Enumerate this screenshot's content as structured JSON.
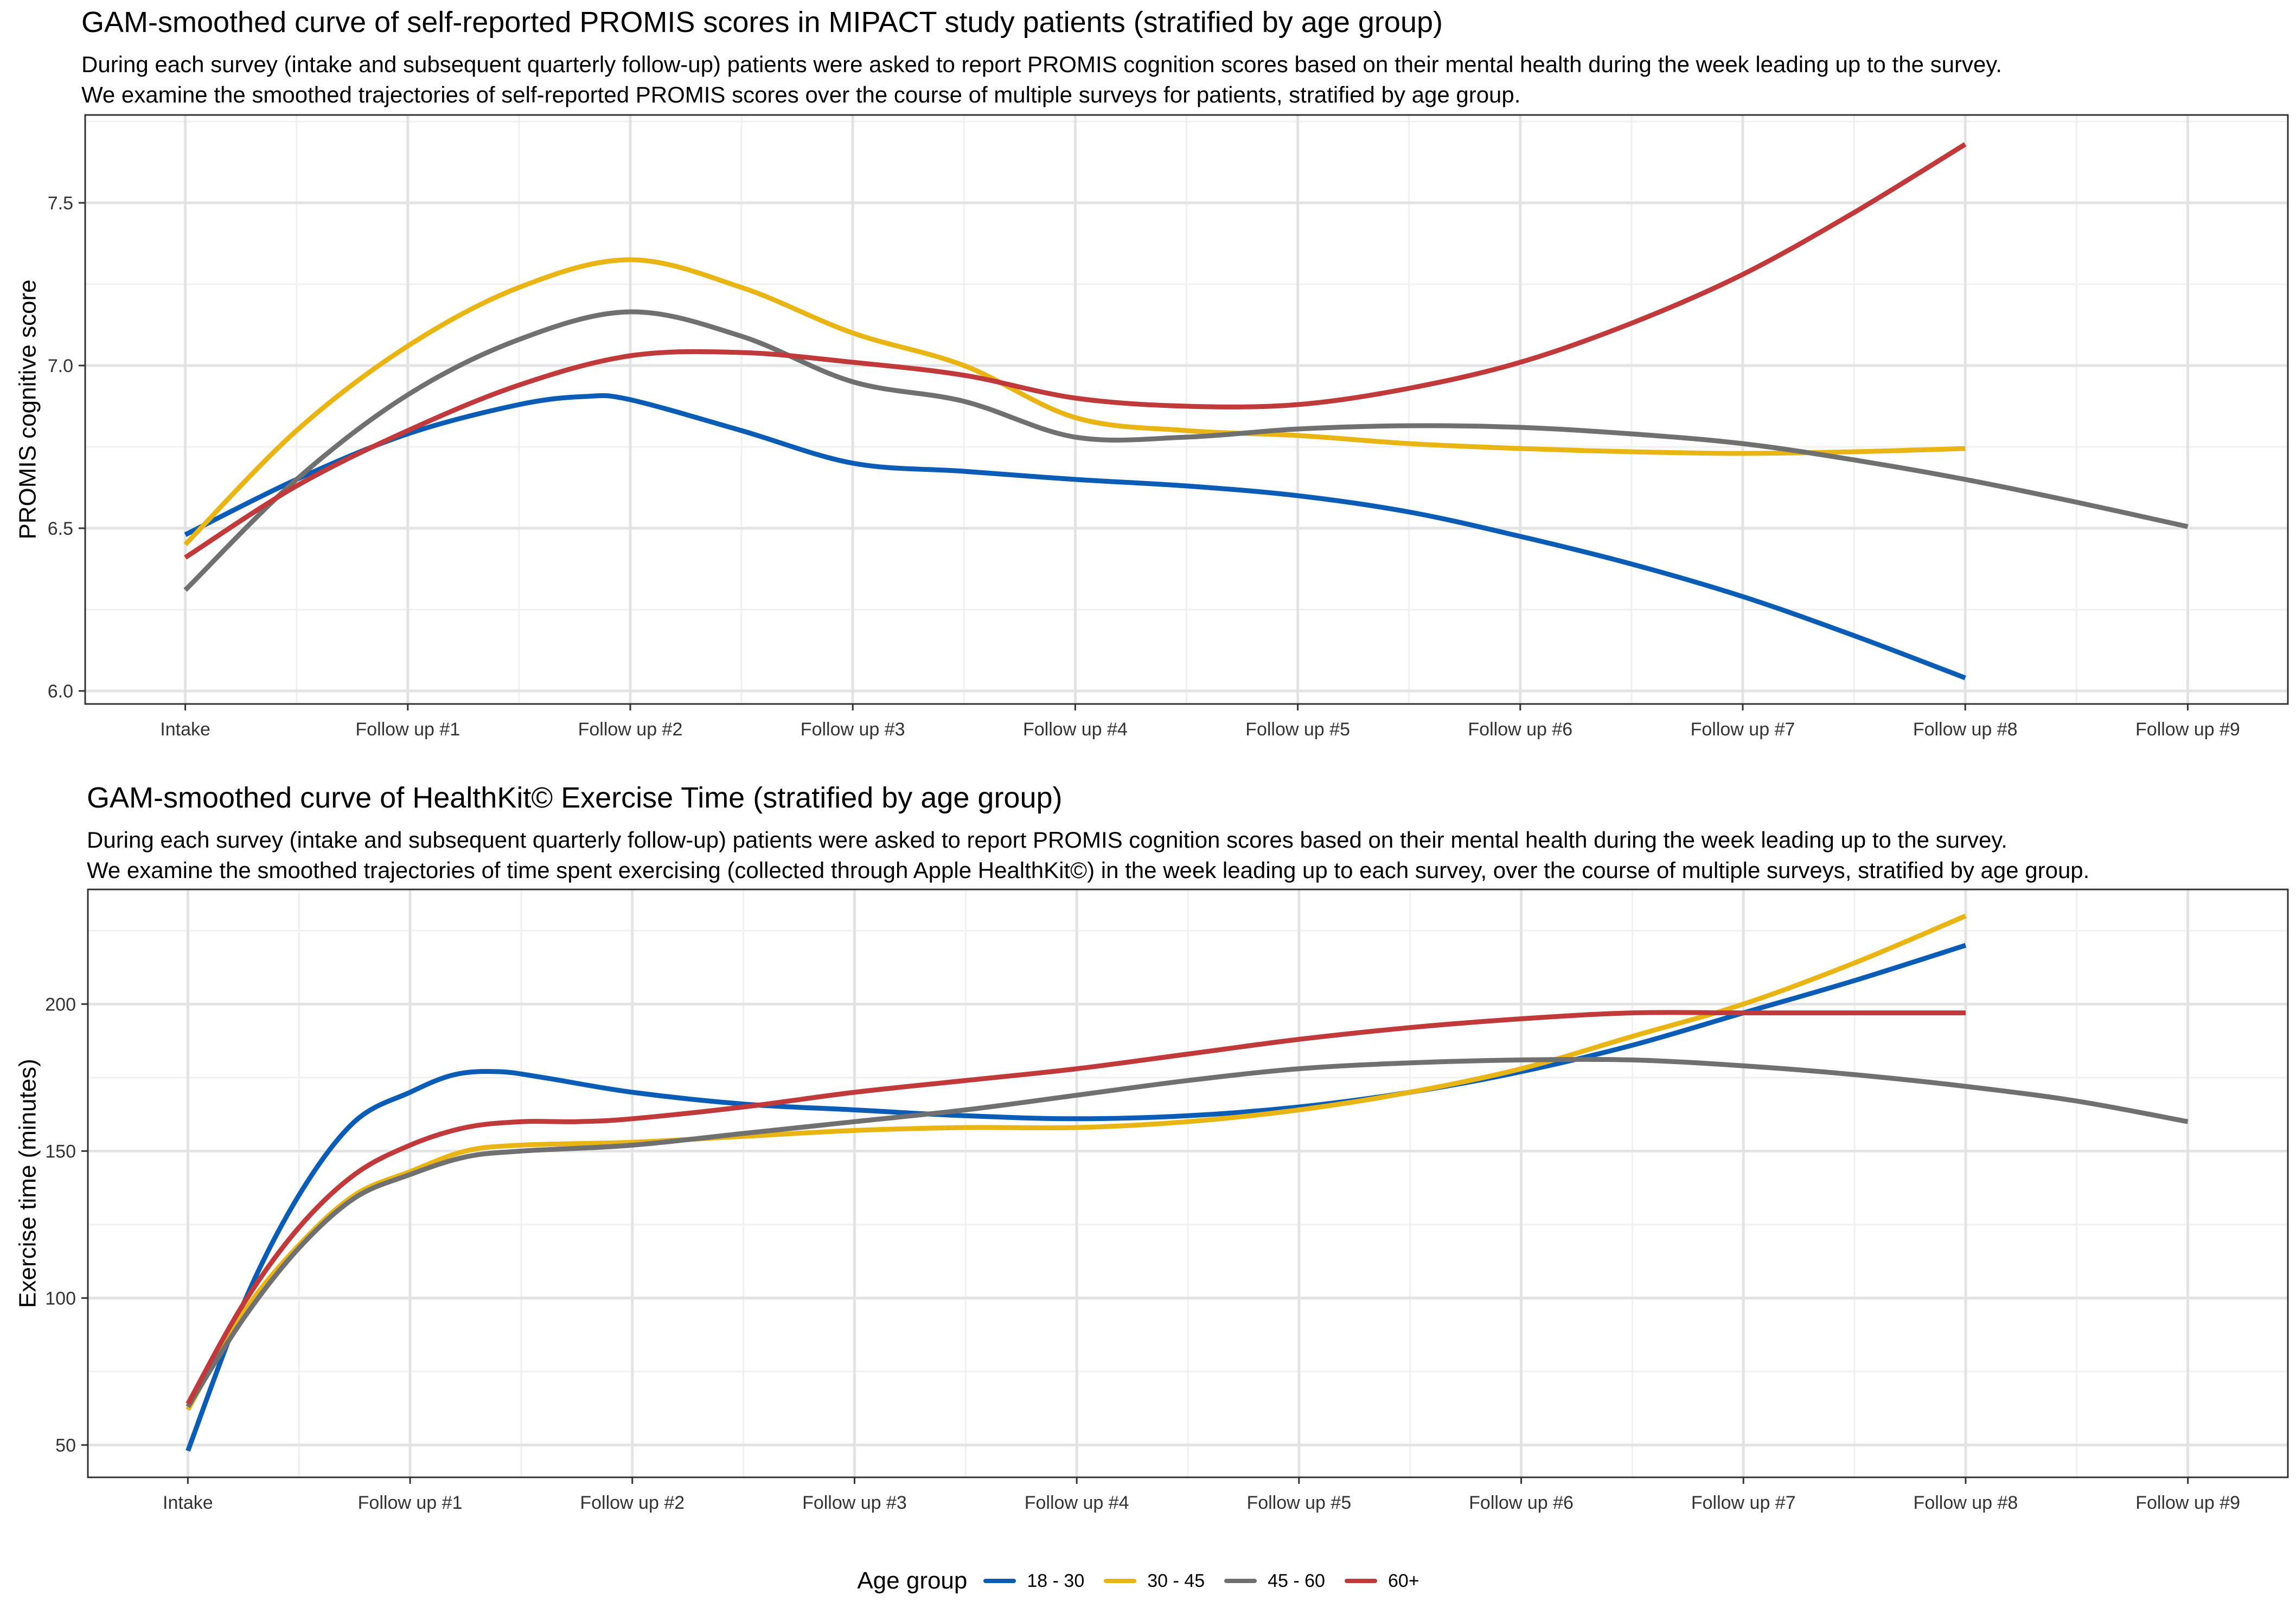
{
  "legend": {
    "title": "Age group",
    "items": [
      {
        "label": "18 - 30",
        "color": "#0B5CB5"
      },
      {
        "label": "30 - 45",
        "color": "#E8B514"
      },
      {
        "label": "45 - 60",
        "color": "#707070"
      },
      {
        "label": "60+",
        "color": "#C0393B"
      }
    ]
  },
  "chart_data": [
    {
      "type": "line",
      "title": "GAM-smoothed curve of self-reported PROMIS scores in MIPACT study patients (stratified by age group)",
      "subtitle_line1": "During each survey (intake and subsequent quarterly follow-up) patients were asked to report PROMIS cognition scores based on their mental health during the week leading up to the survey.",
      "subtitle_line2": "We examine the smoothed trajectories of self-reported PROMIS scores over the course of multiple surveys for patients, stratified by age group.",
      "xlabel": "",
      "ylabel": "PROMIS cognitive score",
      "categories": [
        "Intake",
        "Follow up #1",
        "Follow up #2",
        "Follow up #3",
        "Follow up #4",
        "Follow up #5",
        "Follow up #6",
        "Follow up #7",
        "Follow up #8",
        "Follow up #9"
      ],
      "xlim": [
        -0.45,
        9.45
      ],
      "ylim": [
        5.96,
        7.77
      ],
      "yticks": [
        6.0,
        6.5,
        7.0,
        7.5
      ],
      "ytick_labels": [
        "6.0",
        "6.5",
        "7.0",
        "7.5"
      ],
      "series": [
        {
          "name": "18 - 30",
          "x": [
            0,
            0.5,
            1,
            1.5,
            1.8,
            2,
            2.5,
            3,
            3.5,
            4,
            4.5,
            5,
            5.5,
            6,
            6.5,
            7,
            7.5,
            8
          ],
          "values": [
            6.48,
            6.65,
            6.79,
            6.88,
            6.905,
            6.895,
            6.8,
            6.7,
            6.675,
            6.65,
            6.63,
            6.6,
            6.55,
            6.475,
            6.39,
            6.29,
            6.17,
            6.04
          ]
        },
        {
          "name": "30 - 45",
          "x": [
            0,
            0.5,
            1,
            1.5,
            2,
            2.5,
            3,
            3.5,
            4,
            4.5,
            5,
            5.5,
            6,
            6.5,
            7,
            7.5,
            8
          ],
          "values": [
            6.45,
            6.8,
            7.06,
            7.24,
            7.325,
            7.24,
            7.1,
            7.0,
            6.84,
            6.8,
            6.785,
            6.76,
            6.745,
            6.735,
            6.73,
            6.735,
            6.745
          ]
        },
        {
          "name": "45 - 60",
          "x": [
            0,
            0.5,
            1,
            1.5,
            2,
            2.5,
            3,
            3.5,
            4,
            4.5,
            5,
            5.5,
            6,
            6.5,
            7,
            7.5,
            8,
            8.5,
            9
          ],
          "values": [
            6.31,
            6.65,
            6.91,
            7.08,
            7.165,
            7.09,
            6.95,
            6.89,
            6.78,
            6.78,
            6.805,
            6.815,
            6.81,
            6.79,
            6.76,
            6.71,
            6.65,
            6.58,
            6.505
          ]
        },
        {
          "name": "60+",
          "x": [
            0,
            0.5,
            1,
            1.5,
            2,
            2.5,
            3,
            3.5,
            4,
            4.5,
            5,
            5.5,
            6,
            6.5,
            7,
            7.5,
            8
          ],
          "values": [
            6.41,
            6.63,
            6.8,
            6.94,
            7.03,
            7.04,
            7.01,
            6.97,
            6.9,
            6.875,
            6.88,
            6.93,
            7.01,
            7.13,
            7.28,
            7.47,
            7.68
          ]
        }
      ]
    },
    {
      "type": "line",
      "title": "GAM-smoothed curve of HealthKit© Exercise Time (stratified by age group)",
      "subtitle_line1": "During each survey (intake and subsequent quarterly follow-up) patients were asked to report PROMIS cognition scores based on their mental health during the week leading up to the survey.",
      "subtitle_line2": "We examine the smoothed trajectories of time spent exercising (collected through Apple HealthKit©) in the week leading up to each survey, over the course of multiple surveys, stratified by age group.",
      "xlabel": "",
      "ylabel": "Exercise time (minutes)",
      "categories": [
        "Intake",
        "Follow up #1",
        "Follow up #2",
        "Follow up #3",
        "Follow up #4",
        "Follow up #5",
        "Follow up #6",
        "Follow up #7",
        "Follow up #8",
        "Follow up #9"
      ],
      "xlim": [
        -0.45,
        9.45
      ],
      "ylim": [
        39,
        239
      ],
      "yticks": [
        50,
        100,
        150,
        200
      ],
      "ytick_labels": [
        "50",
        "100",
        "150",
        "200"
      ],
      "series": [
        {
          "name": "18 - 30",
          "x": [
            0,
            0.25,
            0.5,
            0.75,
            1,
            1.2,
            1.4,
            1.6,
            2,
            2.5,
            3,
            3.5,
            4,
            4.5,
            5,
            5.5,
            6,
            6.5,
            7,
            7.5,
            8
          ],
          "values": [
            48,
            98,
            135,
            160,
            170,
            176,
            177,
            175,
            170,
            166,
            164,
            162,
            161,
            162,
            165,
            170,
            177,
            186,
            197,
            208,
            220
          ]
        },
        {
          "name": "30 - 45",
          "x": [
            0,
            0.25,
            0.5,
            0.75,
            1,
            1.25,
            1.5,
            2,
            2.5,
            3,
            3.5,
            4,
            4.5,
            5,
            5.5,
            6,
            6.5,
            7,
            7.5,
            8
          ],
          "values": [
            62,
            95,
            118,
            135,
            143,
            150,
            152,
            153,
            155,
            157,
            158,
            158,
            160,
            164,
            170,
            178,
            189,
            200,
            214,
            230
          ]
        },
        {
          "name": "45 - 60",
          "x": [
            0,
            0.25,
            0.5,
            0.75,
            1,
            1.25,
            1.5,
            2,
            2.5,
            3,
            3.5,
            4,
            4.5,
            5,
            5.5,
            6,
            6.5,
            7,
            7.5,
            8,
            8.5,
            9
          ],
          "values": [
            63,
            93,
            117,
            134,
            142,
            148,
            150,
            152,
            156,
            160,
            164,
            169,
            174,
            178,
            180,
            181,
            181,
            179,
            176,
            172,
            167,
            160
          ]
        },
        {
          "name": "60+",
          "x": [
            0,
            0.25,
            0.5,
            0.75,
            1,
            1.25,
            1.5,
            1.75,
            2,
            2.5,
            3,
            3.5,
            4,
            4.5,
            5,
            5.5,
            6,
            6.5,
            7,
            7.5,
            8
          ],
          "values": [
            64,
            98,
            124,
            142,
            152,
            158,
            160,
            160,
            161,
            165,
            170,
            174,
            178,
            183,
            188,
            192,
            195,
            197,
            197,
            197,
            197
          ]
        }
      ]
    }
  ]
}
